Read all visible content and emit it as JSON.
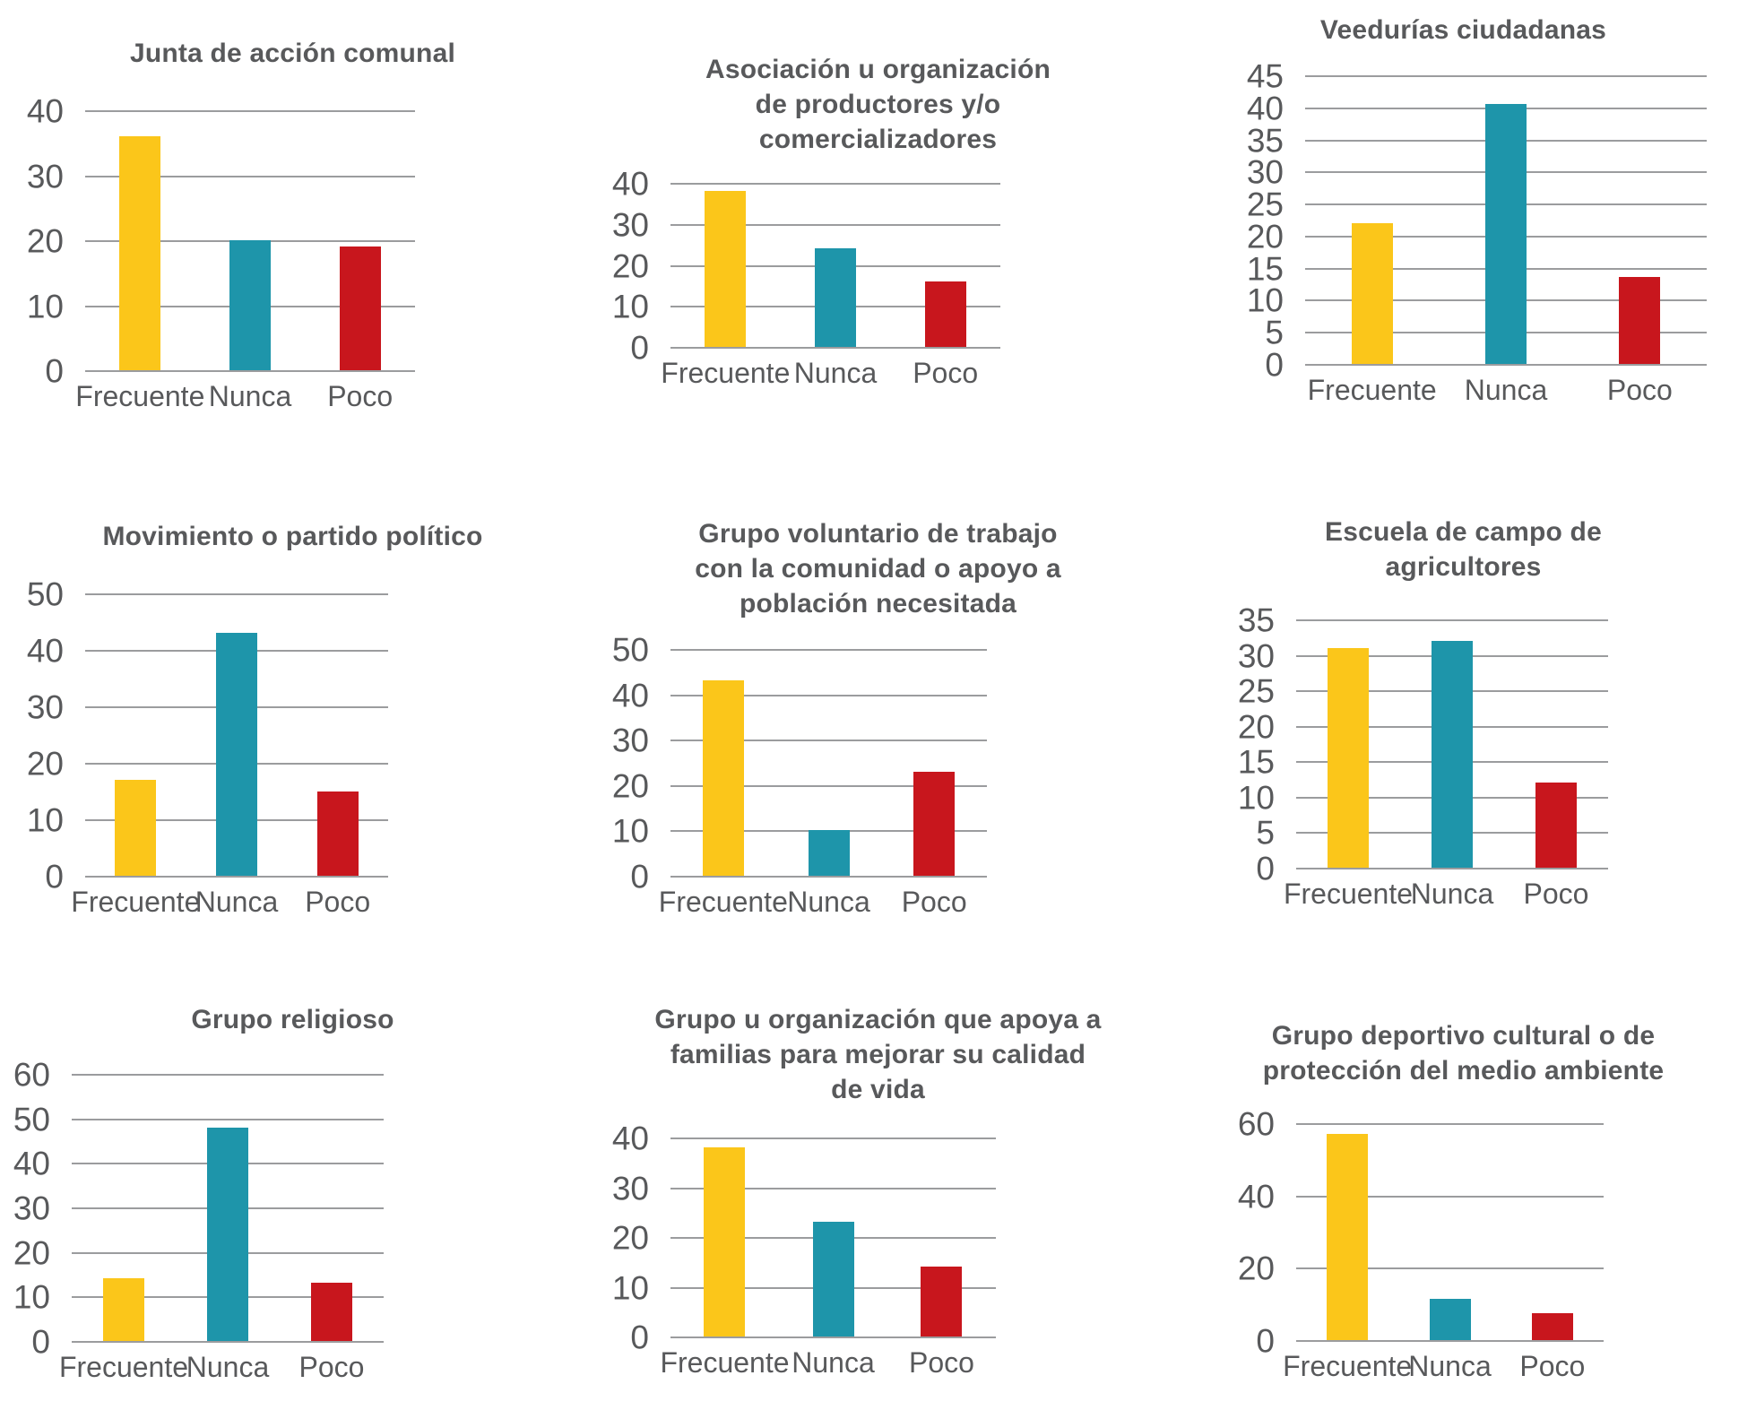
{
  "page": {
    "background": "#ffffff"
  },
  "text_color": "#58595b",
  "grid_color": "#9b9c9e",
  "categories": [
    "Frecuente",
    "Nunca",
    "Poco"
  ],
  "category_colors": [
    "#fbc61a",
    "#1e95aa",
    "#c8161d"
  ],
  "chart_data": [
    {
      "type": "bar",
      "title": "Junta de acción comunal",
      "categories": [
        "Frecuente",
        "Nunca",
        "Poco"
      ],
      "values": [
        36,
        20,
        19
      ],
      "ylim": [
        0,
        40
      ],
      "yticks": [
        0,
        10,
        20,
        30,
        40
      ],
      "grid": true,
      "legend": "none"
    },
    {
      "type": "bar",
      "title": "Asociación u organización de productores y/o comercializadores",
      "categories": [
        "Frecuente",
        "Nunca",
        "Poco"
      ],
      "values": [
        38,
        24,
        16
      ],
      "ylim": [
        0,
        40
      ],
      "yticks": [
        0,
        10,
        20,
        30,
        40
      ],
      "grid": true,
      "legend": "none"
    },
    {
      "type": "bar",
      "title": "Veedurías ciudadanas",
      "categories": [
        "Frecuente",
        "Nunca",
        "Poco"
      ],
      "values": [
        22,
        40.5,
        13.5
      ],
      "ylim": [
        0,
        45
      ],
      "yticks": [
        0,
        5,
        10,
        15,
        20,
        25,
        30,
        35,
        40,
        45
      ],
      "grid": true,
      "legend": "none"
    },
    {
      "type": "bar",
      "title": "Movimiento o partido político",
      "categories": [
        "Frecuente",
        "Nunca",
        "Poco"
      ],
      "values": [
        17,
        43,
        15
      ],
      "ylim": [
        0,
        50
      ],
      "yticks": [
        0,
        10,
        20,
        30,
        40,
        50
      ],
      "grid": true,
      "legend": "none"
    },
    {
      "type": "bar",
      "title": "Grupo voluntario de trabajo con la comunidad o apoyo a población necesitada",
      "categories": [
        "Frecuente",
        "Nunca",
        "Poco"
      ],
      "values": [
        43,
        10,
        23
      ],
      "ylim": [
        0,
        50
      ],
      "yticks": [
        0,
        10,
        20,
        30,
        40,
        50
      ],
      "grid": true,
      "legend": "none"
    },
    {
      "type": "bar",
      "title": "Escuela de campo de agricultores",
      "categories": [
        "Frecuente",
        "Nunca",
        "Poco"
      ],
      "values": [
        31,
        32,
        12
      ],
      "ylim": [
        0,
        35
      ],
      "yticks": [
        0,
        5,
        10,
        15,
        20,
        25,
        30,
        35
      ],
      "grid": true,
      "legend": "none"
    },
    {
      "type": "bar",
      "title": "Grupo religioso",
      "categories": [
        "Frecuente",
        "Nunca",
        "Poco"
      ],
      "values": [
        14,
        48,
        13
      ],
      "ylim": [
        0,
        60
      ],
      "yticks": [
        0,
        10,
        20,
        30,
        40,
        50,
        60
      ],
      "grid": true,
      "legend": "none"
    },
    {
      "type": "bar",
      "title": "Grupo u organización que apoya a familias para mejorar su calidad de vida",
      "categories": [
        "Frecuente",
        "Nunca",
        "Poco"
      ],
      "values": [
        38,
        23,
        14
      ],
      "ylim": [
        0,
        40
      ],
      "yticks": [
        0,
        10,
        20,
        30,
        40
      ],
      "grid": true,
      "legend": "none"
    },
    {
      "type": "bar",
      "title": "Grupo deportivo cultural o de protección del medio ambiente",
      "categories": [
        "Frecuente",
        "Nunca",
        "Poco"
      ],
      "values": [
        57,
        11.5,
        7.5
      ],
      "ylim": [
        0,
        60
      ],
      "yticks": [
        0,
        20,
        40,
        60
      ],
      "grid": true,
      "legend": "none"
    }
  ]
}
